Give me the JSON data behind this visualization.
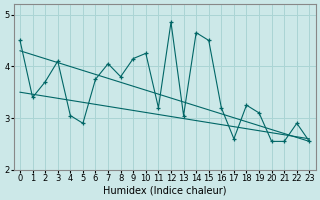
{
  "xlabel": "Humidex (Indice chaleur)",
  "ylabel": "",
  "bg_color": "#cce8e8",
  "line_color": "#006666",
  "grid_color": "#aad4d4",
  "xlim": [
    -0.5,
    23.5
  ],
  "ylim": [
    2,
    5.2
  ],
  "yticks": [
    2,
    3,
    4,
    5
  ],
  "xticks": [
    0,
    1,
    2,
    3,
    4,
    5,
    6,
    7,
    8,
    9,
    10,
    11,
    12,
    13,
    14,
    15,
    16,
    17,
    18,
    19,
    20,
    21,
    22,
    23
  ],
  "series1_x": [
    0,
    1,
    2,
    3,
    4,
    5,
    6,
    7,
    8,
    9,
    10,
    11,
    12,
    13,
    14,
    15,
    16,
    17,
    18,
    19,
    20,
    21,
    22,
    23
  ],
  "series1_y": [
    4.5,
    3.4,
    3.7,
    4.1,
    3.05,
    2.9,
    3.75,
    4.05,
    3.8,
    4.15,
    4.25,
    3.2,
    4.85,
    3.05,
    4.65,
    4.5,
    3.2,
    2.6,
    3.25,
    3.1,
    2.55,
    2.55,
    2.9,
    2.55
  ],
  "series2_x": [
    0,
    23
  ],
  "series2_y": [
    4.3,
    2.55
  ],
  "series3_x": [
    0,
    23
  ],
  "series3_y": [
    3.5,
    2.6
  ],
  "marker": "+"
}
